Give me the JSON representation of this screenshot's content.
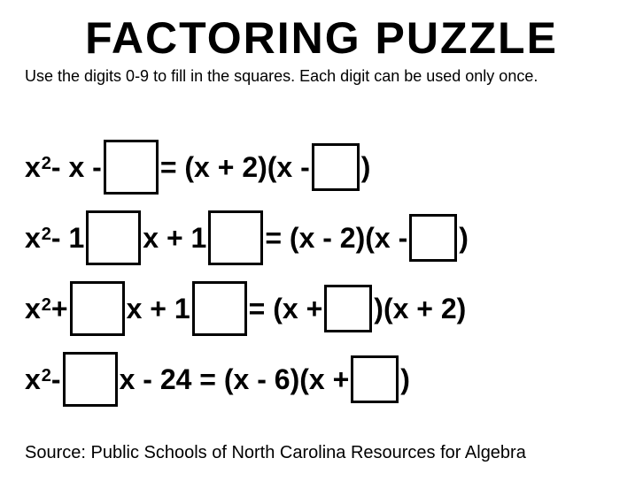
{
  "title": "FACTORING PUZZLE",
  "subtitle": "Use the digits 0-9 to fill in the squares. Each digit can be used only once.",
  "source": "Source: Public Schools of North Carolina Resources for Algebra",
  "style": {
    "background_color": "#ffffff",
    "text_color": "#000000",
    "box_border_color": "#000000",
    "box_border_width": 3,
    "title_fontsize": 50,
    "subtitle_fontsize": 18,
    "equation_fontsize": 32,
    "source_fontsize": 20,
    "box_size_large": 62,
    "box_size_small": 54
  },
  "equations": [
    {
      "parts": [
        {
          "type": "text",
          "value": "x"
        },
        {
          "type": "sup",
          "value": "2"
        },
        {
          "type": "text",
          "value": " - x - "
        },
        {
          "type": "box",
          "size": "large"
        },
        {
          "type": "text",
          "value": " = (x + 2)(x - "
        },
        {
          "type": "box",
          "size": "small"
        },
        {
          "type": "text",
          "value": " )"
        }
      ]
    },
    {
      "parts": [
        {
          "type": "text",
          "value": "x"
        },
        {
          "type": "sup",
          "value": "2"
        },
        {
          "type": "text",
          "value": " - 1"
        },
        {
          "type": "box",
          "size": "large"
        },
        {
          "type": "text",
          "value": "x + 1"
        },
        {
          "type": "box",
          "size": "large"
        },
        {
          "type": "text",
          "value": " = (x - 2)(x -"
        },
        {
          "type": "box",
          "size": "small"
        },
        {
          "type": "text",
          "value": ")"
        }
      ]
    },
    {
      "parts": [
        {
          "type": "text",
          "value": "x"
        },
        {
          "type": "sup",
          "value": "2"
        },
        {
          "type": "text",
          "value": " + "
        },
        {
          "type": "box",
          "size": "large"
        },
        {
          "type": "text",
          "value": "x + 1"
        },
        {
          "type": "box",
          "size": "large"
        },
        {
          "type": "text",
          "value": " = (x +"
        },
        {
          "type": "box",
          "size": "small"
        },
        {
          "type": "text",
          "value": ")(x + 2)"
        }
      ]
    },
    {
      "parts": [
        {
          "type": "text",
          "value": "x"
        },
        {
          "type": "sup",
          "value": "2"
        },
        {
          "type": "text",
          "value": " - "
        },
        {
          "type": "box",
          "size": "large"
        },
        {
          "type": "text",
          "value": "x - 24 = (x - 6)(x +"
        },
        {
          "type": "box",
          "size": "small"
        },
        {
          "type": "text",
          "value": " )"
        }
      ]
    }
  ]
}
